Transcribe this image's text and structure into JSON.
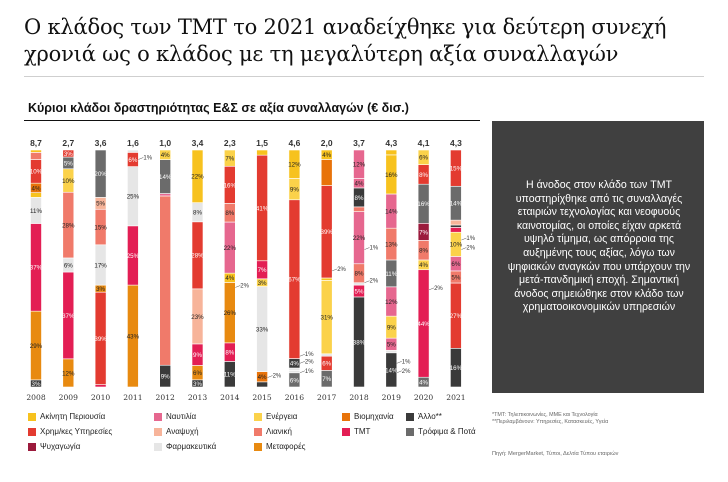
{
  "header": {
    "title_line1": "Ο κλάδος των TMT το 2021 αναδείχθηκε για δεύτερη συνεχή",
    "title_line2": "χρονιά ως ο κλάδος με τη μεγαλύτερη αξία συναλλαγών"
  },
  "panel": {
    "text": "Η άνοδος στον κλάδο των TMT υποστηρίχθηκε από τις συναλλαγές εταιριών τεχνολογίας και νεοφυούς καινοτομίας, οι οποίες είχαν αρκετά υψηλό τίμημα, ως απόρροια της αυξημένης τους αξίας, λόγω των ψηφιακών αναγκών που υπάρχουν την μετά-πανδημική εποχή. Σημαντική άνοδος σημειώθηκε στον κλάδο των χρηματοοικονομικών υπηρεσιών"
  },
  "footnotes": {
    "note1": "*TMT: Τηλεπικοινωνίες, ΜΜΕ και Τεχνολογία",
    "note2": "**Περιλαμβάνουν: Υπηρεσίες, Κατασκευές, Υγεία",
    "source": "Πηγή: MergerMarket, Τύποι, Δελτία Τύπου εταιριών"
  },
  "chart_data": {
    "type": "bar",
    "stacked": true,
    "normalized": true,
    "title": "Κύριοι κλάδοι δραστηριότητας Ε&Σ σε αξία συναλλαγών (€ δισ.)",
    "categories": [
      "2008",
      "2009",
      "2010",
      "2011",
      "2012",
      "2013",
      "2014",
      "2015",
      "2016",
      "2017",
      "2018",
      "2019",
      "2020",
      "2021"
    ],
    "totals": [
      "8,7",
      "2,7",
      "3,6",
      "1,6",
      "1,0",
      "3,4",
      "2,3",
      "1,5",
      "4,6",
      "2,0",
      "3,7",
      "4,3",
      "4,1",
      "4,3"
    ],
    "legend": [
      {
        "key": "real_estate",
        "label": "Ακίνητη Περιουσία",
        "color": "#f7c21e"
      },
      {
        "key": "shipping",
        "label": "Ναυτιλία",
        "color": "#e6678f"
      },
      {
        "key": "energy",
        "label": "Ενέργεια",
        "color": "#fbd24a"
      },
      {
        "key": "industry",
        "label": "Βιομηχανία",
        "color": "#e8730a"
      },
      {
        "key": "other",
        "label": "Άλλο**",
        "color": "#3a3a3a"
      },
      {
        "key": "financial",
        "label": "Χρημ/κες Υπηρεσίες",
        "color": "#e33b30"
      },
      {
        "key": "leisure",
        "label": "Αναψυχή",
        "color": "#f7b49a"
      },
      {
        "key": "retail",
        "label": "Λιανική",
        "color": "#f07a6a"
      },
      {
        "key": "tmt",
        "label": "TMT",
        "color": "#e31e54"
      },
      {
        "key": "food",
        "label": "Τρόφιμα & Ποτά",
        "color": "#6b6b6b"
      },
      {
        "key": "entertainment",
        "label": "Ψυχαγωγία",
        "color": "#9b1a3c"
      },
      {
        "key": "pharma",
        "label": "Φαρμακευτικά",
        "color": "#e6e6e6"
      },
      {
        "key": "transport",
        "label": "Μεταφορές",
        "color": "#e88a10"
      }
    ],
    "bars": [
      {
        "year": "2008",
        "segments": [
          [
            "other",
            3,
            "3%"
          ],
          [
            "transport",
            29,
            "29%"
          ],
          [
            "tmt",
            37,
            "37%"
          ],
          [
            "pharma",
            11,
            "11%"
          ],
          [
            "real_estate",
            2,
            "2%"
          ],
          [
            "industry",
            4,
            "4%"
          ],
          [
            "financial",
            10,
            "10%"
          ],
          [
            "retail",
            3,
            ""
          ],
          [
            "real_estate",
            1,
            "1%"
          ]
        ]
      },
      {
        "year": "2009",
        "segments": [
          [
            "transport",
            12,
            "12%"
          ],
          [
            "tmt",
            37,
            "37%"
          ],
          [
            "pharma",
            6,
            "6%"
          ],
          [
            "retail",
            28,
            "28%"
          ],
          [
            "energy",
            10,
            "10%"
          ],
          [
            "food",
            5,
            "5%"
          ],
          [
            "financial",
            3,
            "3%"
          ]
        ]
      },
      {
        "year": "2010",
        "segments": [
          [
            "tmt",
            1,
            "1%"
          ],
          [
            "financial",
            39,
            "39%"
          ],
          [
            "transport",
            3,
            "3%"
          ],
          [
            "pharma",
            17,
            "17%"
          ],
          [
            "retail",
            15,
            "15%"
          ],
          [
            "leisure",
            5,
            "5%"
          ],
          [
            "food",
            20,
            "20%"
          ]
        ]
      },
      {
        "year": "2011",
        "segments": [
          [
            "transport",
            43,
            "43%"
          ],
          [
            "tmt",
            25,
            "25%"
          ],
          [
            "pharma",
            25,
            "25%"
          ],
          [
            "financial",
            6,
            "6%"
          ],
          [
            "pharma",
            1,
            "1%"
          ]
        ]
      },
      {
        "year": "2012",
        "segments": [
          [
            "other",
            9,
            "9%"
          ],
          [
            "retail",
            70,
            ""
          ],
          [
            "shipping",
            1,
            "1%"
          ],
          [
            "food",
            14,
            "14%"
          ],
          [
            "energy",
            4,
            "4%"
          ]
        ]
      },
      {
        "year": "2013",
        "segments": [
          [
            "other",
            3,
            "3%"
          ],
          [
            "transport",
            6,
            "6%"
          ],
          [
            "tmt",
            9,
            "9%"
          ],
          [
            "leisure",
            23,
            "23%"
          ],
          [
            "financial",
            28,
            "28%"
          ],
          [
            "pharma",
            8,
            "8%"
          ],
          [
            "real_estate",
            22,
            "22%"
          ]
        ]
      },
      {
        "year": "2014",
        "segments": [
          [
            "other",
            11,
            "11%"
          ],
          [
            "tmt",
            8,
            "8%"
          ],
          [
            "transport",
            26,
            "26%"
          ],
          [
            "real_estate",
            4,
            "4%"
          ],
          [
            "shipping",
            22,
            "22%"
          ],
          [
            "retail",
            8,
            "8%"
          ],
          [
            "financial",
            16,
            "16%"
          ],
          [
            "energy",
            7,
            "7%"
          ]
        ]
      },
      {
        "year": "2015",
        "segments": [
          [
            "other",
            2,
            "2%"
          ],
          [
            "industry",
            4,
            "4%"
          ],
          [
            "pharma",
            33,
            "33%"
          ],
          [
            "energy",
            3,
            "3%"
          ],
          [
            "tmt",
            7,
            "7%"
          ],
          [
            "financial",
            41,
            "41%"
          ],
          [
            "real_estate",
            2,
            "2%"
          ]
        ]
      },
      {
        "year": "2016",
        "segments": [
          [
            "food",
            6,
            "6%"
          ],
          [
            "pharma",
            1,
            "1%"
          ],
          [
            "pharma",
            1,
            "1%"
          ],
          [
            "other",
            4,
            "4%"
          ],
          [
            "financial",
            67,
            "67%"
          ],
          [
            "energy",
            9,
            "9%"
          ],
          [
            "real_estate",
            12,
            "12%"
          ]
        ]
      },
      {
        "year": "2017",
        "segments": [
          [
            "food",
            7,
            "7%"
          ],
          [
            "financial",
            6,
            "6%"
          ],
          [
            "pharma",
            1,
            "1%"
          ],
          [
            "energy",
            31,
            "31%"
          ],
          [
            "real_estate",
            1,
            ""
          ],
          [
            "financial",
            39,
            "39%"
          ],
          [
            "industry",
            11,
            ""
          ],
          [
            "real_estate",
            4,
            "4%"
          ]
        ]
      },
      {
        "year": "2018",
        "segments": [
          [
            "other",
            38,
            "38%"
          ],
          [
            "tmt",
            5,
            "5%"
          ],
          [
            "pharma",
            1,
            "1%"
          ],
          [
            "retail",
            8,
            "8%"
          ],
          [
            "shipping",
            22,
            "22%"
          ],
          [
            "retail",
            2,
            "2%"
          ],
          [
            "other",
            8,
            "8%"
          ],
          [
            "shipping",
            4,
            "4%"
          ],
          [
            "shipping",
            12,
            "12%"
          ]
        ]
      },
      {
        "year": "2019",
        "segments": [
          [
            "other",
            14,
            "14%"
          ],
          [
            "pharma",
            1,
            "1%"
          ],
          [
            "shipping",
            5,
            "5%"
          ],
          [
            "energy",
            9,
            "9%"
          ],
          [
            "shipping",
            12,
            "12%"
          ],
          [
            "food",
            11,
            "11%"
          ],
          [
            "retail",
            13,
            "13%"
          ],
          [
            "shipping",
            14,
            "14%"
          ],
          [
            "real_estate",
            16,
            "16%"
          ],
          [
            "real_estate",
            2,
            ""
          ]
        ]
      },
      {
        "year": "2020",
        "segments": [
          [
            "food",
            4,
            "4%"
          ],
          [
            "tmt",
            44,
            "44%"
          ],
          [
            "energy",
            4,
            "4%"
          ],
          [
            "retail",
            8,
            "8%"
          ],
          [
            "entertainment",
            7,
            "7%"
          ],
          [
            "food",
            16,
            "16%"
          ],
          [
            "financial",
            8,
            "8%"
          ],
          [
            "energy",
            6,
            "6%"
          ]
        ]
      },
      {
        "year": "2021",
        "segments": [
          [
            "other",
            16,
            "16%"
          ],
          [
            "financial",
            27,
            "27%"
          ],
          [
            "retail",
            5,
            "5%"
          ],
          [
            "shipping",
            6,
            "6%"
          ],
          [
            "energy",
            10,
            "10%"
          ],
          [
            "tmt",
            2,
            "2%"
          ],
          [
            "other",
            1,
            "1%"
          ],
          [
            "leisure",
            2,
            "2%"
          ],
          [
            "food",
            14,
            "14%"
          ],
          [
            "financial",
            15,
            "15%"
          ]
        ]
      }
    ],
    "side_labels": [
      {
        "year": "2011",
        "label": "1%",
        "at": 96
      },
      {
        "year": "2014",
        "label": "2%",
        "at": 42
      },
      {
        "year": "2015",
        "label": "2%",
        "at": 4
      },
      {
        "year": "2016",
        "label": "1%",
        "at": 6
      },
      {
        "year": "2016",
        "label": "2%",
        "at": 10
      },
      {
        "year": "2016",
        "label": "1%",
        "at": 13
      },
      {
        "year": "2017",
        "label": "2%",
        "at": 49
      },
      {
        "year": "2018",
        "label": "2%",
        "at": 44
      },
      {
        "year": "2018",
        "label": "1%",
        "at": 58
      },
      {
        "year": "2019",
        "label": "2%",
        "at": 6
      },
      {
        "year": "2019",
        "label": "1%",
        "at": 10
      },
      {
        "year": "2020",
        "label": "2%",
        "at": 41
      },
      {
        "year": "2021",
        "label": "2%",
        "at": 58
      },
      {
        "year": "2021",
        "label": "1%",
        "at": 62
      }
    ]
  }
}
